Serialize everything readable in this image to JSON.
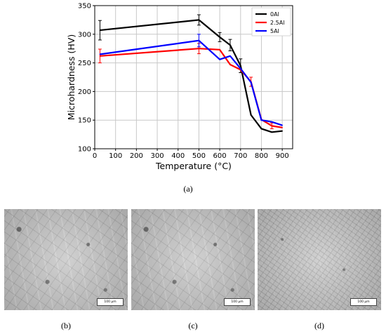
{
  "chart_data": {
    "type": "line",
    "xlabel": "Temperature (°C)",
    "ylabel": "Microhardness (HV)",
    "xlim": [
      0,
      950
    ],
    "ylim": [
      100,
      350
    ],
    "xticks": [
      0,
      100,
      200,
      300,
      400,
      500,
      600,
      700,
      800,
      900
    ],
    "yticks": [
      100,
      150,
      200,
      250,
      300,
      350
    ],
    "grid": true,
    "legend_position": "top-right",
    "series": [
      {
        "name": "0Al",
        "color": "#000000",
        "x": [
          25,
          500,
          600,
          650,
          700,
          750,
          800,
          850,
          900
        ],
        "y": [
          307,
          325,
          295,
          281,
          245,
          159,
          135,
          129,
          131
        ],
        "err": [
          17,
          9,
          8,
          10,
          12,
          0,
          0,
          0,
          0
        ]
      },
      {
        "name": "2.5Al",
        "color": "#ff0000",
        "x": [
          25,
          500,
          600,
          650,
          700,
          750,
          800,
          850,
          900
        ],
        "y": [
          262,
          275,
          273,
          247,
          238,
          217,
          151,
          140,
          137
        ],
        "err": [
          12,
          9,
          0,
          0,
          0,
          8,
          0,
          5,
          0
        ]
      },
      {
        "name": "5Al",
        "color": "#0000ff",
        "x": [
          25,
          500,
          600,
          650,
          700,
          750,
          800,
          850,
          900
        ],
        "y": [
          265,
          289,
          256,
          262,
          240,
          216,
          150,
          147,
          141
        ],
        "err": [
          0,
          11,
          0,
          0,
          0,
          0,
          0,
          0,
          0
        ]
      }
    ]
  },
  "captions": {
    "a": "(a)",
    "b": "(b)",
    "c": "(c)",
    "d": "(d)"
  },
  "scale_bar_label": "100 μm"
}
